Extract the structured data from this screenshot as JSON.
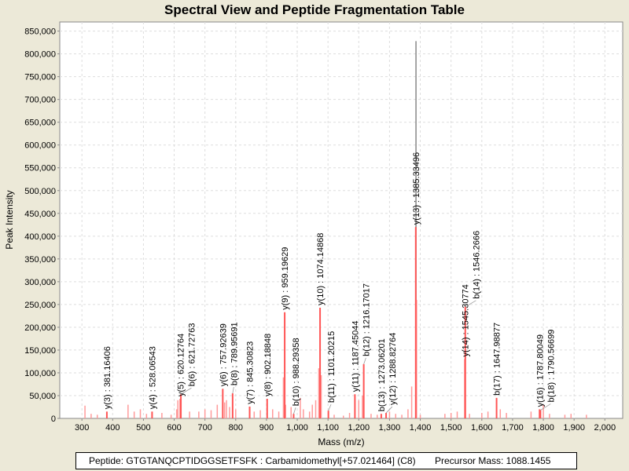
{
  "chart_data": {
    "type": "bar",
    "title": "Spectral View and Peptide Fragmentation Table",
    "xlabel": "Mass (m/z)",
    "ylabel": "Peak Intensity",
    "xlim": [
      228,
      2058
    ],
    "ylim": [
      0,
      870000
    ],
    "xticks": [
      300,
      400,
      500,
      600,
      700,
      800,
      900,
      1000,
      1100,
      1200,
      1300,
      1400,
      1500,
      1600,
      1700,
      1800,
      1900,
      2000
    ],
    "yticks": [
      0,
      50000,
      100000,
      150000,
      200000,
      250000,
      300000,
      350000,
      400000,
      450000,
      500000,
      550000,
      600000,
      650000,
      700000,
      750000,
      800000,
      850000
    ],
    "grid": true,
    "colors": {
      "peak": "#FF5555",
      "noise": "#FF9A9A",
      "base": "#888888"
    },
    "annotated_peaks": [
      {
        "label": "y(3) : 381.16406",
        "mz": 381.16,
        "intensity": 15000
      },
      {
        "label": "y(4) : 528.06543",
        "mz": 528.07,
        "intensity": 15000
      },
      {
        "label": "y(5) : 620.12764",
        "mz": 620.13,
        "intensity": 43000
      },
      {
        "label": "b(6) : 621.72763",
        "mz": 621.73,
        "intensity": 53000
      },
      {
        "label": "y(6) : 757.92639",
        "mz": 757.93,
        "intensity": 65000
      },
      {
        "label": "b(8) : 789.95691",
        "mz": 789.96,
        "intensity": 55000
      },
      {
        "label": "y(7) : 845.30823",
        "mz": 845.31,
        "intensity": 26000
      },
      {
        "label": "y(8) : 902.18848",
        "mz": 902.19,
        "intensity": 43000
      },
      {
        "label": "y(9) : 959.19629",
        "mz": 959.2,
        "intensity": 233000
      },
      {
        "label": "b(10) : 988.29358",
        "mz": 988.29,
        "intensity": 10000
      },
      {
        "label": "y(10) : 1074.14868",
        "mz": 1074.15,
        "intensity": 243000
      },
      {
        "label": "b(11) : 1101.20215",
        "mz": 1101.2,
        "intensity": 17000
      },
      {
        "label": "y(11) : 1187.45044",
        "mz": 1187.45,
        "intensity": 53000
      },
      {
        "label": "b(12) : 1216.17017",
        "mz": 1216.17,
        "intensity": 119000
      },
      {
        "label": "b(13) : 1273.06201",
        "mz": 1273.06,
        "intensity": 10000
      },
      {
        "label": "y(12) : 1288.82764",
        "mz": 1288.83,
        "intensity": 12000
      },
      {
        "label": "y(13) : 1385.33496",
        "mz": 1385.33,
        "intensity": 420000
      },
      {
        "label": "y(14) : 1545.30774",
        "mz": 1545.31,
        "intensity": 130000
      },
      {
        "label": "b(14) : 1546.2666",
        "mz": 1546.27,
        "intensity": 245000
      },
      {
        "label": "b(17) : 1647.98877",
        "mz": 1647.99,
        "intensity": 45000
      },
      {
        "label": "y(16) : 1787.80049",
        "mz": 1787.8,
        "intensity": 20000
      },
      {
        "label": "b(18) : 1790.56699",
        "mz": 1790.57,
        "intensity": 18000
      }
    ],
    "other_peaks": [
      [
        1386,
        828000
      ],
      [
        1372,
        70000
      ],
      [
        1388,
        260000
      ],
      [
        1070,
        110000
      ],
      [
        1078,
        95000
      ],
      [
        1060,
        40000
      ],
      [
        1049,
        30000
      ],
      [
        955,
        90000
      ],
      [
        962,
        30000
      ],
      [
        1200,
        40000
      ],
      [
        1212,
        50000
      ],
      [
        612,
        40000
      ],
      [
        650,
        15000
      ],
      [
        608,
        20000
      ],
      [
        740,
        30000
      ],
      [
        764,
        35000
      ],
      [
        770,
        40000
      ],
      [
        780,
        25000
      ],
      [
        800,
        20000
      ],
      [
        310,
        28000
      ],
      [
        330,
        10000
      ],
      [
        350,
        8000
      ],
      [
        450,
        30000
      ],
      [
        470,
        15000
      ],
      [
        490,
        20000
      ],
      [
        510,
        10000
      ],
      [
        560,
        12000
      ],
      [
        590,
        8000
      ],
      [
        680,
        15000
      ],
      [
        700,
        20000
      ],
      [
        720,
        18000
      ],
      [
        860,
        15000
      ],
      [
        880,
        18000
      ],
      [
        920,
        20000
      ],
      [
        940,
        15000
      ],
      [
        980,
        25000
      ],
      [
        1010,
        45000
      ],
      [
        1020,
        20000
      ],
      [
        1040,
        15000
      ],
      [
        1120,
        8000
      ],
      [
        1150,
        6000
      ],
      [
        1170,
        12000
      ],
      [
        1240,
        10000
      ],
      [
        1260,
        8000
      ],
      [
        1300,
        15000
      ],
      [
        1320,
        10000
      ],
      [
        1340,
        8000
      ],
      [
        1360,
        20000
      ],
      [
        1400,
        8000
      ],
      [
        1480,
        10000
      ],
      [
        1500,
        12000
      ],
      [
        1520,
        15000
      ],
      [
        1560,
        10000
      ],
      [
        1600,
        12000
      ],
      [
        1620,
        15000
      ],
      [
        1660,
        20000
      ],
      [
        1680,
        12000
      ],
      [
        1760,
        15000
      ],
      [
        1800,
        30000
      ],
      [
        1820,
        10000
      ],
      [
        1870,
        8000
      ],
      [
        1890,
        10000
      ],
      [
        1940,
        8000
      ]
    ]
  },
  "footer": {
    "peptide": "Peptide: GTGTANQCPTIDGGSETFSFK : Carbamidomethyl[+57.021464] (C8)",
    "precursor": "Precursor Mass: 1088.1455"
  }
}
